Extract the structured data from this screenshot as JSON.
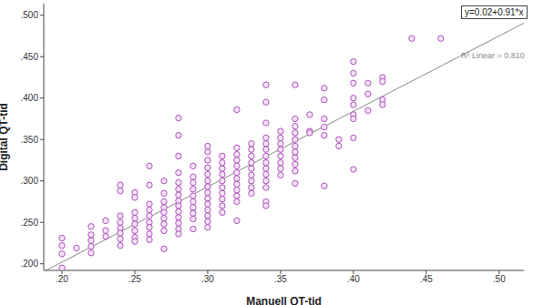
{
  "chart_data": {
    "type": "scatter",
    "x_label": "Manuell QT-tid",
    "y_label": "Digital QT-tid",
    "color": "#b050c0",
    "marker": "circle",
    "annotations": [
      "y=0.02+0.91*x",
      "R² Linear = 0.810"
    ],
    "fit": {
      "intercept": 0.02,
      "slope": 0.91
    },
    "xlim": [
      0.1875,
      0.517
    ],
    "ylim": [
      0.192,
      0.514
    ],
    "xticks": [
      {
        "value": 0.2,
        "label": ".20"
      },
      {
        "value": 0.25,
        "label": ".25"
      },
      {
        "value": 0.3,
        "label": ".30"
      },
      {
        "value": 0.35,
        "label": ".35"
      },
      {
        "value": 0.4,
        "label": ".40"
      },
      {
        "value": 0.45,
        "label": ".45"
      },
      {
        "value": 0.5,
        "label": ".50"
      }
    ],
    "yticks": [
      {
        "value": 0.2,
        "label": ".200"
      },
      {
        "value": 0.25,
        "label": ".250"
      },
      {
        "value": 0.3,
        "label": ".300"
      },
      {
        "value": 0.35,
        "label": ".350"
      },
      {
        "value": 0.4,
        "label": ".400"
      },
      {
        "value": 0.45,
        "label": ".450"
      },
      {
        "value": 0.5,
        "label": ".500"
      }
    ],
    "x": [
      0.2,
      0.2,
      0.2,
      0.2,
      0.21,
      0.22,
      0.22,
      0.22,
      0.22,
      0.22,
      0.23,
      0.23,
      0.23,
      0.24,
      0.24,
      0.24,
      0.24,
      0.24,
      0.24,
      0.24,
      0.24,
      0.25,
      0.25,
      0.25,
      0.25,
      0.25,
      0.25,
      0.25,
      0.25,
      0.26,
      0.26,
      0.26,
      0.26,
      0.26,
      0.26,
      0.26,
      0.26,
      0.26,
      0.27,
      0.27,
      0.27,
      0.27,
      0.27,
      0.27,
      0.27,
      0.27,
      0.27,
      0.28,
      0.28,
      0.28,
      0.28,
      0.28,
      0.28,
      0.28,
      0.28,
      0.28,
      0.28,
      0.28,
      0.28,
      0.28,
      0.28,
      0.29,
      0.29,
      0.29,
      0.29,
      0.29,
      0.29,
      0.29,
      0.29,
      0.29,
      0.29,
      0.3,
      0.3,
      0.3,
      0.3,
      0.3,
      0.3,
      0.3,
      0.3,
      0.3,
      0.3,
      0.3,
      0.3,
      0.3,
      0.3,
      0.31,
      0.31,
      0.31,
      0.31,
      0.31,
      0.31,
      0.31,
      0.31,
      0.31,
      0.31,
      0.32,
      0.32,
      0.32,
      0.32,
      0.32,
      0.32,
      0.32,
      0.32,
      0.32,
      0.32,
      0.32,
      0.32,
      0.33,
      0.33,
      0.33,
      0.33,
      0.33,
      0.33,
      0.33,
      0.33,
      0.33,
      0.34,
      0.34,
      0.34,
      0.34,
      0.34,
      0.34,
      0.34,
      0.34,
      0.34,
      0.34,
      0.34,
      0.34,
      0.34,
      0.34,
      0.35,
      0.35,
      0.35,
      0.35,
      0.35,
      0.35,
      0.35,
      0.35,
      0.36,
      0.36,
      0.36,
      0.36,
      0.36,
      0.36,
      0.36,
      0.36,
      0.36,
      0.36,
      0.36,
      0.37,
      0.37,
      0.37,
      0.38,
      0.38,
      0.38,
      0.38,
      0.38,
      0.38,
      0.39,
      0.39,
      0.4,
      0.4,
      0.4,
      0.4,
      0.4,
      0.4,
      0.4,
      0.4,
      0.4,
      0.41,
      0.41,
      0.41,
      0.42,
      0.42,
      0.42,
      0.42,
      0.44,
      0.46
    ],
    "values": [
      0.231,
      0.222,
      0.212,
      0.195,
      0.219,
      0.245,
      0.235,
      0.228,
      0.221,
      0.213,
      0.252,
      0.24,
      0.233,
      0.295,
      0.288,
      0.258,
      0.25,
      0.243,
      0.237,
      0.23,
      0.222,
      0.262,
      0.255,
      0.248,
      0.24,
      0.232,
      0.227,
      0.286,
      0.28,
      0.318,
      0.295,
      0.272,
      0.265,
      0.258,
      0.25,
      0.244,
      0.236,
      0.229,
      0.3,
      0.285,
      0.275,
      0.268,
      0.262,
      0.255,
      0.248,
      0.24,
      0.218,
      0.376,
      0.355,
      0.33,
      0.31,
      0.298,
      0.29,
      0.283,
      0.276,
      0.27,
      0.263,
      0.256,
      0.249,
      0.242,
      0.236,
      0.318,
      0.305,
      0.298,
      0.29,
      0.282,
      0.275,
      0.268,
      0.261,
      0.254,
      0.242,
      0.342,
      0.335,
      0.325,
      0.316,
      0.308,
      0.3,
      0.293,
      0.286,
      0.279,
      0.272,
      0.265,
      0.258,
      0.251,
      0.244,
      0.33,
      0.322,
      0.315,
      0.308,
      0.3,
      0.292,
      0.285,
      0.278,
      0.27,
      0.262,
      0.386,
      0.34,
      0.332,
      0.325,
      0.318,
      0.31,
      0.303,
      0.296,
      0.289,
      0.282,
      0.275,
      0.252,
      0.345,
      0.338,
      0.33,
      0.322,
      0.315,
      0.307,
      0.3,
      0.292,
      0.285,
      0.416,
      0.395,
      0.37,
      0.352,
      0.345,
      0.338,
      0.33,
      0.322,
      0.315,
      0.308,
      0.3,
      0.292,
      0.275,
      0.27,
      0.36,
      0.352,
      0.345,
      0.338,
      0.33,
      0.322,
      0.315,
      0.307,
      0.416,
      0.375,
      0.366,
      0.358,
      0.35,
      0.342,
      0.335,
      0.328,
      0.32,
      0.312,
      0.297,
      0.38,
      0.36,
      0.358,
      0.412,
      0.398,
      0.375,
      0.365,
      0.355,
      0.294,
      0.35,
      0.342,
      0.444,
      0.43,
      0.418,
      0.4,
      0.392,
      0.38,
      0.375,
      0.352,
      0.314,
      0.418,
      0.405,
      0.385,
      0.425,
      0.42,
      0.398,
      0.392,
      0.472,
      0.472
    ]
  }
}
